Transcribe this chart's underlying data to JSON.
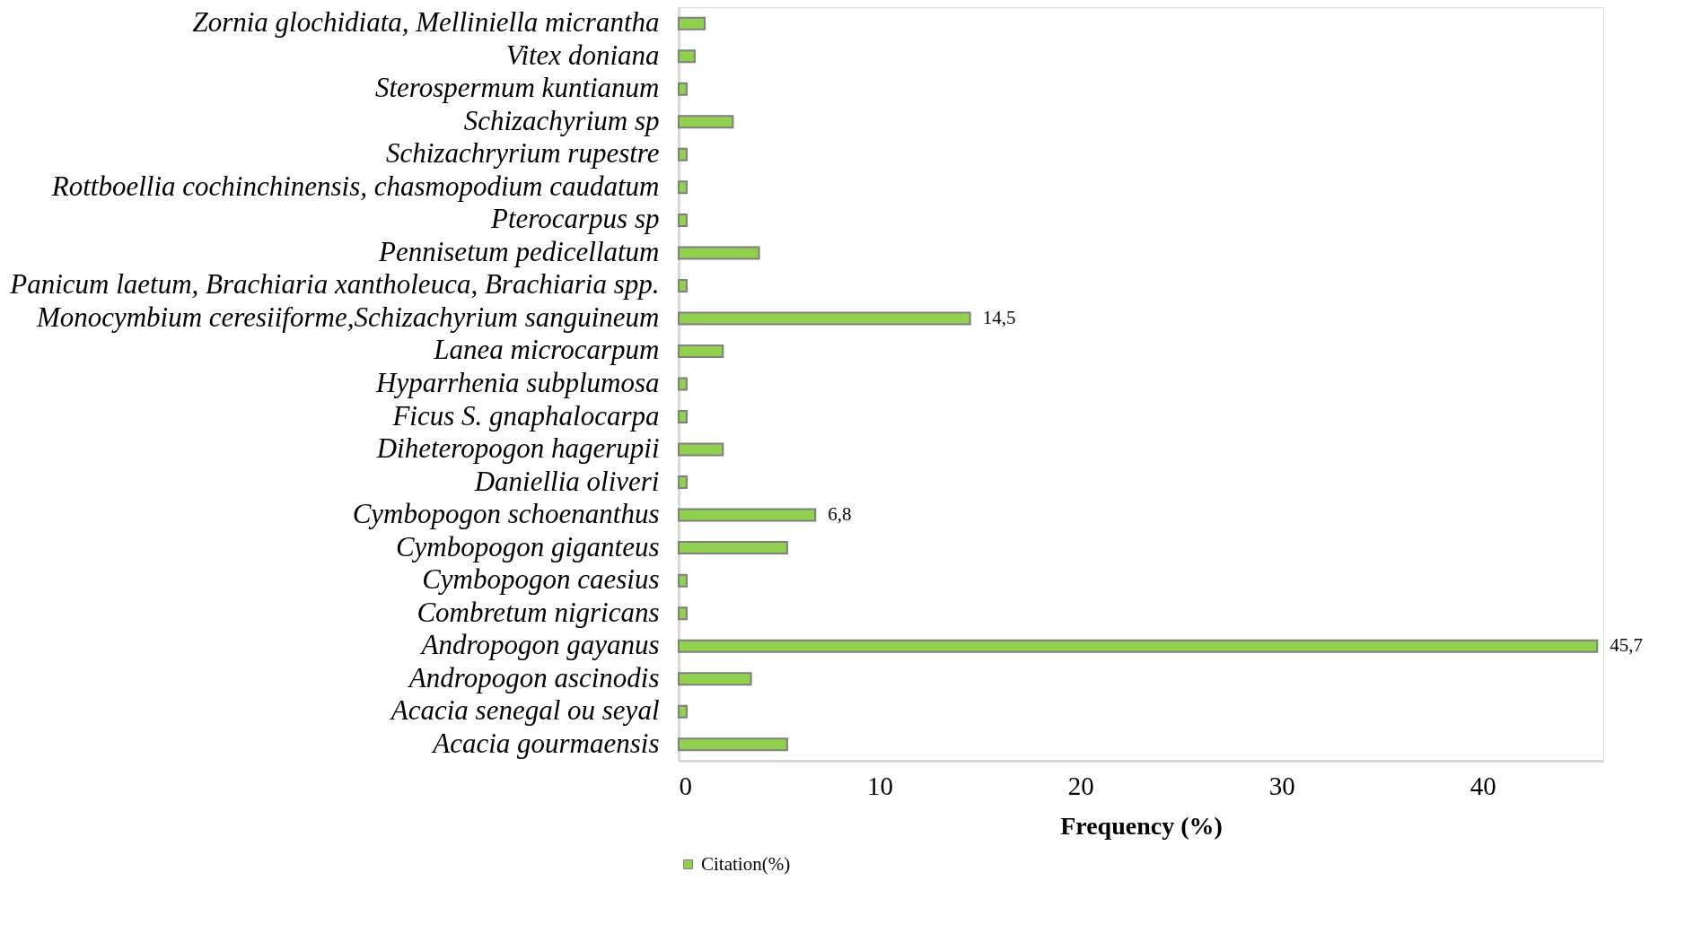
{
  "chart_data": {
    "type": "bar",
    "orientation": "horizontal",
    "xlabel": "Frequency (%)",
    "categories": [
      "Zornia glochidiata, Melliniella micrantha",
      "Vitex doniana",
      "Sterospermum kuntianum",
      "Schizachyrium sp",
      "Schizachryrium rupestre",
      "Rottboellia cochinchinensis, chasmopodium caudatum",
      "Pterocarpus sp",
      "Pennisetum pedicellatum",
      "Panicum laetum, Brachiaria xantholeuca, Brachiaria spp.",
      "Monocymbium ceresiiforme,Schizachyrium sanguineum",
      "Lanea microcarpum",
      "Hyparrhenia subplumosa",
      "Ficus S. gnaphalocarpa",
      "Diheteropogon hagerupii",
      "Daniellia oliveri",
      "Cymbopogon schoenanthus",
      "Cymbopogon giganteus",
      "Cymbopogon caesius",
      "Combretum nigricans",
      "Andropogon gayanus",
      "Andropogon ascinodis",
      "Acacia senegal ou seyal",
      "Acacia gourmaensis"
    ],
    "series": [
      {
        "name": "Citation(%)",
        "color": "#92d050",
        "values": [
          1.3,
          0.8,
          0.4,
          2.7,
          0.4,
          0.4,
          0.4,
          4.0,
          0.4,
          14.5,
          2.2,
          0.4,
          0.4,
          2.2,
          0.4,
          6.8,
          5.4,
          0.4,
          0.4,
          45.7,
          3.6,
          0.4,
          5.4
        ],
        "value_labels": [
          null,
          null,
          null,
          null,
          null,
          null,
          null,
          null,
          null,
          "14,5",
          null,
          null,
          null,
          null,
          null,
          "6,8",
          null,
          null,
          null,
          "45,7",
          null,
          null,
          null
        ]
      }
    ],
    "xlim": [
      0,
      46
    ],
    "xticks": [
      0,
      10,
      20,
      30,
      40
    ],
    "grid": false,
    "legend": "bottom"
  }
}
